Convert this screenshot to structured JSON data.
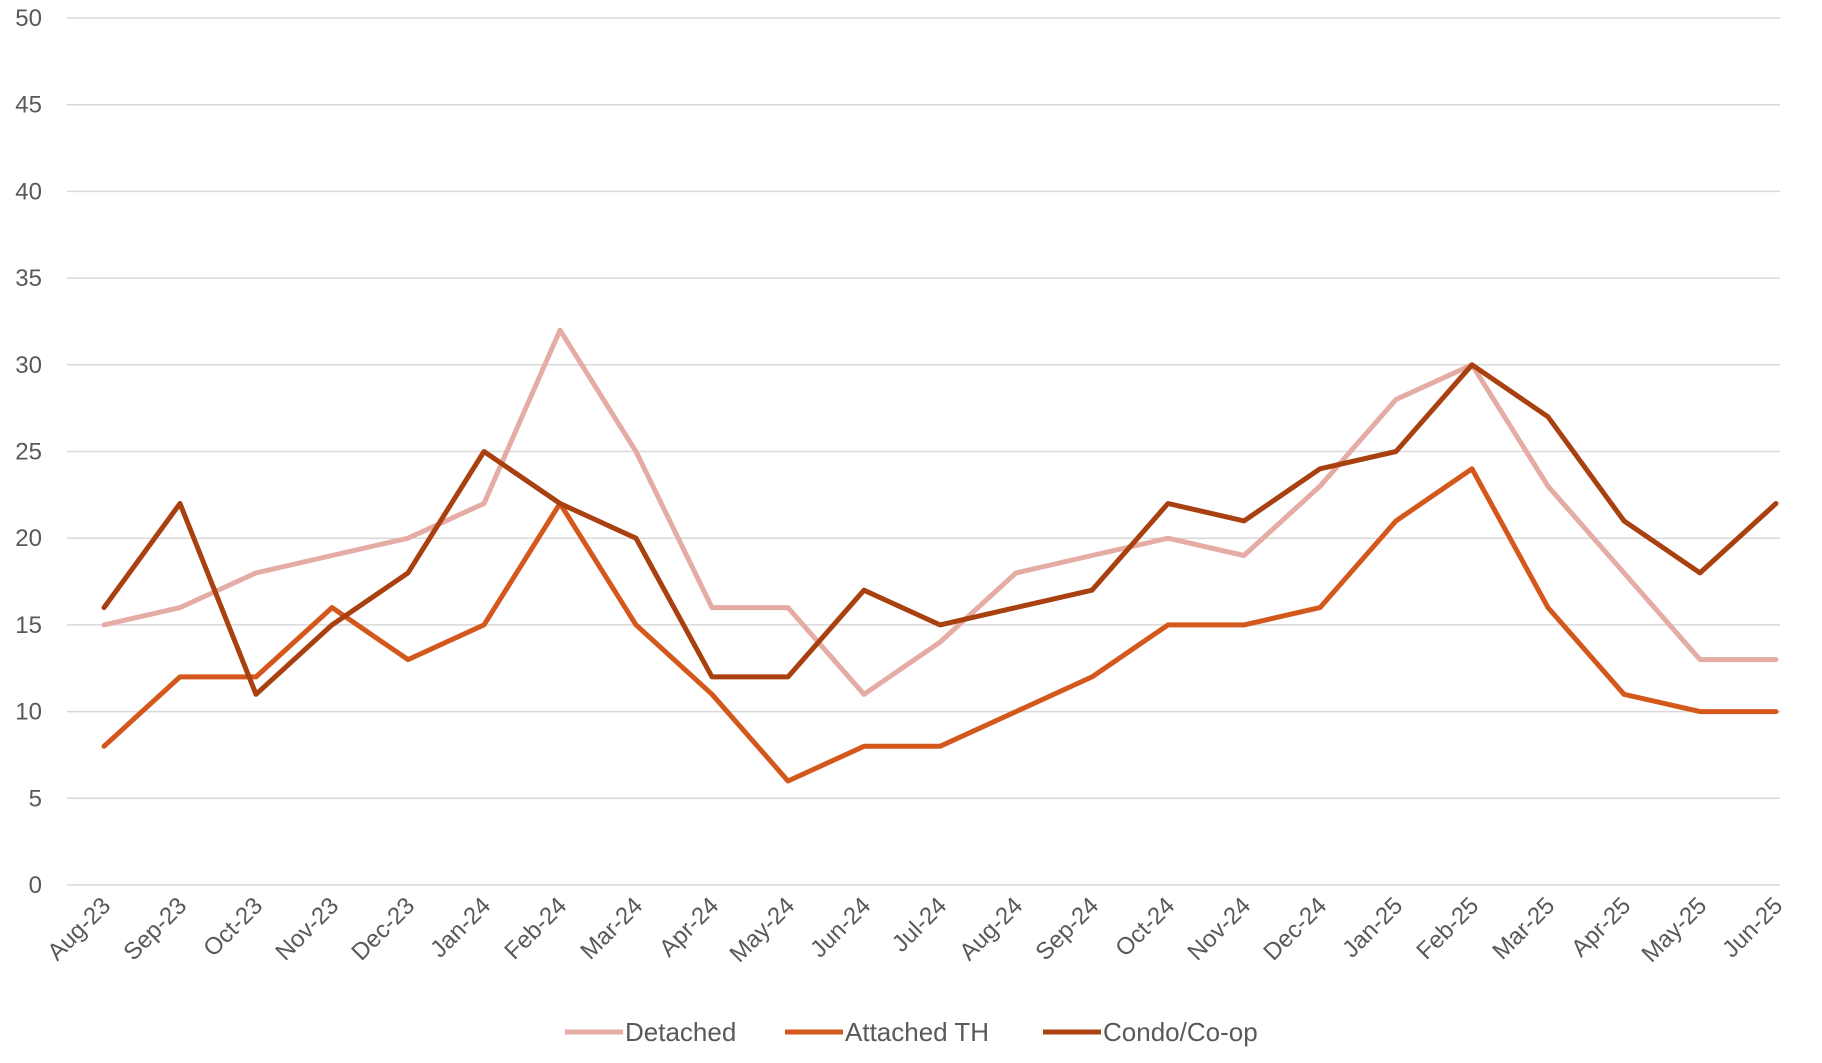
{
  "chart_data": {
    "type": "line",
    "categories": [
      "Aug-23",
      "Sep-23",
      "Oct-23",
      "Nov-23",
      "Dec-23",
      "Jan-24",
      "Feb-24",
      "Mar-24",
      "Apr-24",
      "May-24",
      "Jun-24",
      "Jul-24",
      "Aug-24",
      "Sep-24",
      "Oct-24",
      "Nov-24",
      "Dec-24",
      "Jan-25",
      "Feb-25",
      "Mar-25",
      "Apr-25",
      "May-25",
      "Jun-25"
    ],
    "series": [
      {
        "name": "Detached",
        "color": "#e5aca5",
        "values": [
          15,
          16,
          18,
          19,
          20,
          22,
          32,
          25,
          16,
          16,
          11,
          14,
          18,
          19,
          20,
          19,
          23,
          28,
          30,
          23,
          18,
          13,
          13
        ]
      },
      {
        "name": "Attached TH",
        "color": "#d4581c",
        "values": [
          8,
          12,
          12,
          16,
          13,
          15,
          22,
          15,
          11,
          6,
          8,
          8,
          10,
          12,
          15,
          15,
          16,
          21,
          24,
          16,
          11,
          10,
          10
        ]
      },
      {
        "name": "Condo/Co-op",
        "color": "#a8400f",
        "values": [
          16,
          22,
          11,
          15,
          18,
          25,
          22,
          20,
          12,
          12,
          17,
          15,
          16,
          17,
          22,
          21,
          24,
          25,
          30,
          27,
          21,
          18,
          22
        ]
      }
    ],
    "ylim": [
      0,
      50
    ],
    "yticks": [
      "0",
      "5",
      "10",
      "15",
      "20",
      "25",
      "30",
      "35",
      "40",
      "45",
      "50"
    ],
    "grid": true,
    "legend_position": "bottom-center",
    "title": "",
    "xlabel": "",
    "ylabel": ""
  }
}
